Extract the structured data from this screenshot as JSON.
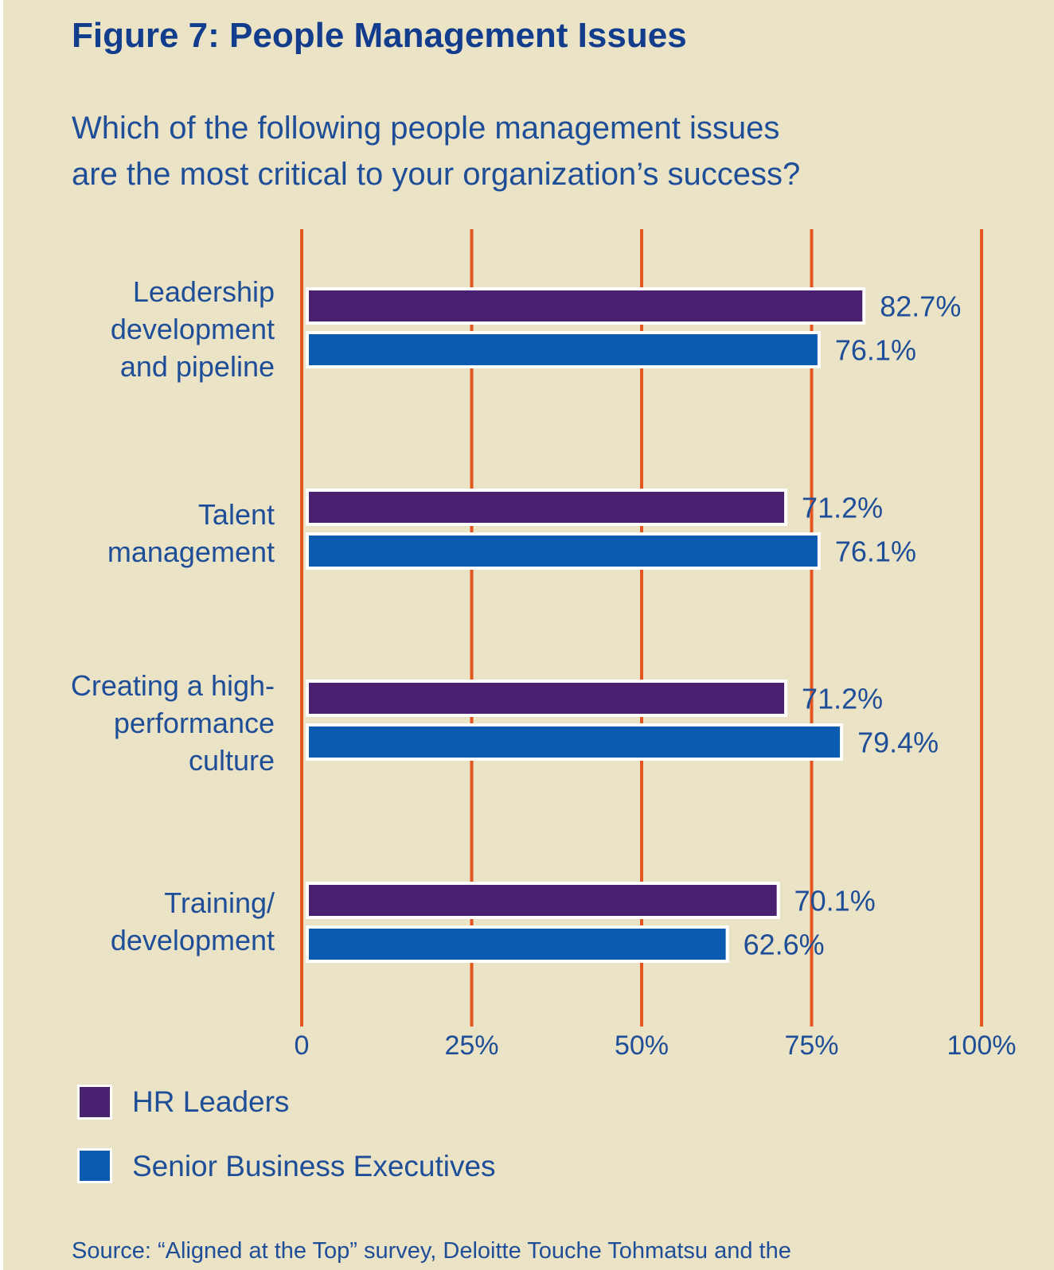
{
  "title": "Figure 7: People Management Issues",
  "question_line1": "Which of the following people management issues",
  "question_line2": "are the most critical to your organization’s success?",
  "source": "Source: “Aligned at the Top” survey, Deloitte Touche Tohmatsu and the",
  "colors": {
    "background": "#ebe3c6",
    "gridline": "#e4561f",
    "hr_leaders": "#4a2070",
    "senior_execs": "#0b5cb0",
    "text": "#1f4e98",
    "title": "#123d8c"
  },
  "chart_data": {
    "type": "bar",
    "orientation": "horizontal",
    "categories": [
      [
        "Leadership",
        "development",
        "and pipeline"
      ],
      [
        "Talent",
        "management"
      ],
      [
        "Creating a high-",
        "performance",
        "culture"
      ],
      [
        "Training/",
        "development"
      ]
    ],
    "series": [
      {
        "name": "HR Leaders",
        "color": "#4a2070",
        "values": [
          82.7,
          71.2,
          71.2,
          70.1
        ],
        "labels": [
          "82.7%",
          "71.2%",
          "71.2%",
          "70.1%"
        ]
      },
      {
        "name": "Senior Business Executives",
        "color": "#0b5cb0",
        "values": [
          76.1,
          76.1,
          79.4,
          62.6
        ],
        "labels": [
          "76.1%",
          "76.1%",
          "79.4%",
          "62.6%"
        ]
      }
    ],
    "xlim": [
      0,
      100
    ],
    "ticks": [
      0,
      25,
      50,
      75,
      100
    ],
    "tick_labels": [
      "0",
      "25%",
      "50%",
      "75%",
      "100%"
    ],
    "grid": true,
    "legend_position": "bottom-left"
  }
}
